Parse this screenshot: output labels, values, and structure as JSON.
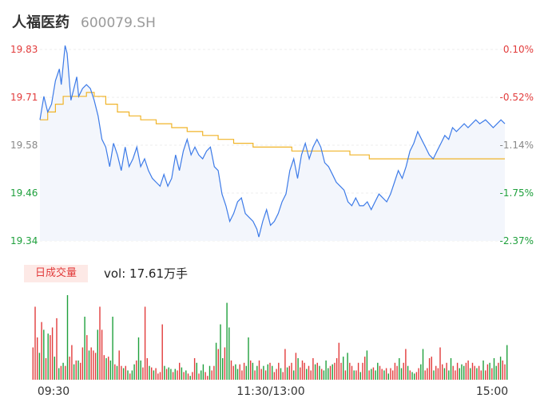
{
  "header": {
    "name": "人福医药",
    "code": "600079.SH"
  },
  "volume_badge": "日成交量",
  "volume_text": "vol: 17.61万手",
  "colors": {
    "price_line": "#3d7be8",
    "avg_line": "#f0b429",
    "up": "#e23b3b",
    "down": "#1ea03c",
    "neutral_label": "#888888",
    "area_fill": "#f3f6fc"
  },
  "chart_data": {
    "type": "line",
    "title": "",
    "xlabel": "",
    "ylabel": "",
    "ylim": [
      19.34,
      19.83
    ],
    "y_ticks": [
      {
        "price": "19.83",
        "pct": "0.10%",
        "trend": "up"
      },
      {
        "price": "19.71",
        "pct": "-0.52%",
        "trend": "up"
      },
      {
        "price": "19.58",
        "pct": "-1.14%",
        "trend": "flat"
      },
      {
        "price": "19.46",
        "pct": "-1.75%",
        "trend": "down"
      },
      {
        "price": "19.34",
        "pct": "-2.37%",
        "trend": "down"
      }
    ],
    "x_ticks": [
      "09:30",
      "11:30/13:00",
      "15:00"
    ],
    "price_series": [
      [
        0,
        19.65
      ],
      [
        2,
        19.71
      ],
      [
        4,
        19.67
      ],
      [
        6,
        19.69
      ],
      [
        8,
        19.75
      ],
      [
        10,
        19.78
      ],
      [
        11,
        19.74
      ],
      [
        13,
        19.84
      ],
      [
        14,
        19.82
      ],
      [
        16,
        19.7
      ],
      [
        18,
        19.74
      ],
      [
        19,
        19.76
      ],
      [
        20,
        19.71
      ],
      [
        22,
        19.73
      ],
      [
        24,
        19.74
      ],
      [
        26,
        19.73
      ],
      [
        28,
        19.7
      ],
      [
        30,
        19.66
      ],
      [
        32,
        19.6
      ],
      [
        34,
        19.58
      ],
      [
        36,
        19.53
      ],
      [
        38,
        19.59
      ],
      [
        40,
        19.56
      ],
      [
        42,
        19.52
      ],
      [
        44,
        19.58
      ],
      [
        46,
        19.53
      ],
      [
        48,
        19.55
      ],
      [
        50,
        19.58
      ],
      [
        52,
        19.53
      ],
      [
        54,
        19.55
      ],
      [
        56,
        19.52
      ],
      [
        58,
        19.5
      ],
      [
        60,
        19.49
      ],
      [
        62,
        19.48
      ],
      [
        64,
        19.51
      ],
      [
        66,
        19.48
      ],
      [
        68,
        19.5
      ],
      [
        70,
        19.56
      ],
      [
        72,
        19.52
      ],
      [
        74,
        19.57
      ],
      [
        76,
        19.6
      ],
      [
        78,
        19.56
      ],
      [
        80,
        19.58
      ],
      [
        82,
        19.56
      ],
      [
        84,
        19.55
      ],
      [
        86,
        19.57
      ],
      [
        88,
        19.58
      ],
      [
        90,
        19.53
      ],
      [
        92,
        19.52
      ],
      [
        94,
        19.46
      ],
      [
        96,
        19.43
      ],
      [
        98,
        19.39
      ],
      [
        100,
        19.41
      ],
      [
        102,
        19.44
      ],
      [
        104,
        19.45
      ],
      [
        106,
        19.41
      ],
      [
        108,
        19.4
      ],
      [
        110,
        19.39
      ],
      [
        112,
        19.37
      ],
      [
        113,
        19.35
      ],
      [
        115,
        19.39
      ],
      [
        117,
        19.42
      ],
      [
        119,
        19.38
      ],
      [
        121,
        19.39
      ],
      [
        123,
        19.41
      ],
      [
        125,
        19.44
      ],
      [
        127,
        19.46
      ],
      [
        129,
        19.52
      ],
      [
        131,
        19.55
      ],
      [
        133,
        19.5
      ],
      [
        135,
        19.56
      ],
      [
        137,
        19.59
      ],
      [
        139,
        19.55
      ],
      [
        141,
        19.58
      ],
      [
        143,
        19.6
      ],
      [
        145,
        19.58
      ],
      [
        147,
        19.54
      ],
      [
        149,
        19.53
      ],
      [
        151,
        19.51
      ],
      [
        153,
        19.49
      ],
      [
        155,
        19.48
      ],
      [
        157,
        19.47
      ],
      [
        159,
        19.44
      ],
      [
        161,
        19.43
      ],
      [
        163,
        19.45
      ],
      [
        165,
        19.43
      ],
      [
        167,
        19.43
      ],
      [
        169,
        19.44
      ],
      [
        171,
        19.42
      ],
      [
        173,
        19.44
      ],
      [
        175,
        19.46
      ],
      [
        177,
        19.45
      ],
      [
        179,
        19.44
      ],
      [
        181,
        19.46
      ],
      [
        183,
        19.49
      ],
      [
        185,
        19.52
      ],
      [
        187,
        19.5
      ],
      [
        189,
        19.53
      ],
      [
        191,
        19.57
      ],
      [
        193,
        19.59
      ],
      [
        195,
        19.62
      ],
      [
        197,
        19.6
      ],
      [
        199,
        19.58
      ],
      [
        201,
        19.56
      ],
      [
        203,
        19.55
      ],
      [
        205,
        19.57
      ],
      [
        207,
        19.59
      ],
      [
        209,
        19.61
      ],
      [
        211,
        19.6
      ],
      [
        213,
        19.63
      ],
      [
        215,
        19.62
      ],
      [
        217,
        19.63
      ],
      [
        219,
        19.64
      ],
      [
        221,
        19.63
      ],
      [
        223,
        19.64
      ],
      [
        225,
        19.65
      ],
      [
        227,
        19.64
      ],
      [
        230,
        19.65
      ],
      [
        232,
        19.64
      ],
      [
        234,
        19.63
      ],
      [
        236,
        19.64
      ],
      [
        238,
        19.65
      ],
      [
        240,
        19.64
      ]
    ],
    "avg_series": [
      [
        0,
        19.65
      ],
      [
        4,
        19.67
      ],
      [
        8,
        19.69
      ],
      [
        12,
        19.71
      ],
      [
        20,
        19.71
      ],
      [
        24,
        19.72
      ],
      [
        28,
        19.71
      ],
      [
        34,
        19.69
      ],
      [
        40,
        19.67
      ],
      [
        46,
        19.66
      ],
      [
        52,
        19.65
      ],
      [
        60,
        19.64
      ],
      [
        68,
        19.63
      ],
      [
        76,
        19.62
      ],
      [
        84,
        19.61
      ],
      [
        92,
        19.6
      ],
      [
        100,
        19.59
      ],
      [
        110,
        19.58
      ],
      [
        120,
        19.58
      ],
      [
        130,
        19.57
      ],
      [
        140,
        19.57
      ],
      [
        150,
        19.57
      ],
      [
        160,
        19.56
      ],
      [
        170,
        19.55
      ],
      [
        180,
        19.55
      ],
      [
        190,
        19.55
      ],
      [
        200,
        19.55
      ],
      [
        210,
        19.55
      ],
      [
        220,
        19.55
      ],
      [
        230,
        19.55
      ],
      [
        240,
        19.55
      ]
    ],
    "volume": [
      {
        "v": 42,
        "d": "up"
      },
      {
        "v": 95,
        "d": "up"
      },
      {
        "v": 55,
        "d": "up"
      },
      {
        "v": 35,
        "d": "down"
      },
      {
        "v": 75,
        "d": "up"
      },
      {
        "v": 65,
        "d": "down"
      },
      {
        "v": 28,
        "d": "up"
      },
      {
        "v": 60,
        "d": "down"
      },
      {
        "v": 58,
        "d": "up"
      },
      {
        "v": 68,
        "d": "up"
      },
      {
        "v": 30,
        "d": "down"
      },
      {
        "v": 80,
        "d": "up"
      },
      {
        "v": 15,
        "d": "down"
      },
      {
        "v": 18,
        "d": "up"
      },
      {
        "v": 22,
        "d": "down"
      },
      {
        "v": 18,
        "d": "up"
      },
      {
        "v": 110,
        "d": "down"
      },
      {
        "v": 30,
        "d": "up"
      },
      {
        "v": 45,
        "d": "up"
      },
      {
        "v": 20,
        "d": "down"
      },
      {
        "v": 25,
        "d": "up"
      },
      {
        "v": 25,
        "d": "down"
      },
      {
        "v": 22,
        "d": "up"
      },
      {
        "v": 42,
        "d": "up"
      },
      {
        "v": 82,
        "d": "down"
      },
      {
        "v": 58,
        "d": "up"
      },
      {
        "v": 38,
        "d": "down"
      },
      {
        "v": 42,
        "d": "up"
      },
      {
        "v": 38,
        "d": "up"
      },
      {
        "v": 35,
        "d": "up"
      },
      {
        "v": 65,
        "d": "down"
      },
      {
        "v": 95,
        "d": "up"
      },
      {
        "v": 65,
        "d": "up"
      },
      {
        "v": 32,
        "d": "up"
      },
      {
        "v": 28,
        "d": "down"
      },
      {
        "v": 30,
        "d": "up"
      },
      {
        "v": 25,
        "d": "down"
      },
      {
        "v": 82,
        "d": "down"
      },
      {
        "v": 20,
        "d": "up"
      },
      {
        "v": 18,
        "d": "down"
      },
      {
        "v": 38,
        "d": "up"
      },
      {
        "v": 18,
        "d": "up"
      },
      {
        "v": 15,
        "d": "down"
      },
      {
        "v": 18,
        "d": "up"
      },
      {
        "v": 12,
        "d": "down"
      },
      {
        "v": 8,
        "d": "up"
      },
      {
        "v": 12,
        "d": "down"
      },
      {
        "v": 20,
        "d": "down"
      },
      {
        "v": 25,
        "d": "up"
      },
      {
        "v": 55,
        "d": "down"
      },
      {
        "v": 25,
        "d": "down"
      },
      {
        "v": 16,
        "d": "up"
      },
      {
        "v": 95,
        "d": "up"
      },
      {
        "v": 28,
        "d": "up"
      },
      {
        "v": 18,
        "d": "down"
      },
      {
        "v": 16,
        "d": "up"
      },
      {
        "v": 12,
        "d": "down"
      },
      {
        "v": 15,
        "d": "up"
      },
      {
        "v": 8,
        "d": "up"
      },
      {
        "v": 10,
        "d": "up"
      },
      {
        "v": 72,
        "d": "up"
      },
      {
        "v": 18,
        "d": "down"
      },
      {
        "v": 14,
        "d": "up"
      },
      {
        "v": 16,
        "d": "down"
      },
      {
        "v": 14,
        "d": "down"
      },
      {
        "v": 10,
        "d": "up"
      },
      {
        "v": 14,
        "d": "down"
      },
      {
        "v": 12,
        "d": "up"
      },
      {
        "v": 22,
        "d": "up"
      },
      {
        "v": 16,
        "d": "down"
      },
      {
        "v": 10,
        "d": "up"
      },
      {
        "v": 12,
        "d": "down"
      },
      {
        "v": 8,
        "d": "up"
      },
      {
        "v": 5,
        "d": "down"
      },
      {
        "v": 10,
        "d": "up"
      },
      {
        "v": 28,
        "d": "up"
      },
      {
        "v": 22,
        "d": "down"
      },
      {
        "v": 8,
        "d": "up"
      },
      {
        "v": 12,
        "d": "down"
      },
      {
        "v": 20,
        "d": "down"
      },
      {
        "v": 10,
        "d": "up"
      },
      {
        "v": 5,
        "d": "up"
      },
      {
        "v": 18,
        "d": "down"
      },
      {
        "v": 12,
        "d": "up"
      },
      {
        "v": 18,
        "d": "up"
      },
      {
        "v": 48,
        "d": "down"
      },
      {
        "v": 40,
        "d": "up"
      },
      {
        "v": 72,
        "d": "down"
      },
      {
        "v": 28,
        "d": "down"
      },
      {
        "v": 42,
        "d": "up"
      },
      {
        "v": 100,
        "d": "down"
      },
      {
        "v": 68,
        "d": "down"
      },
      {
        "v": 25,
        "d": "up"
      },
      {
        "v": 18,
        "d": "up"
      },
      {
        "v": 20,
        "d": "down"
      },
      {
        "v": 14,
        "d": "down"
      },
      {
        "v": 20,
        "d": "up"
      },
      {
        "v": 12,
        "d": "up"
      },
      {
        "v": 22,
        "d": "up"
      },
      {
        "v": 18,
        "d": "down"
      },
      {
        "v": 55,
        "d": "down"
      },
      {
        "v": 25,
        "d": "up"
      },
      {
        "v": 22,
        "d": "down"
      },
      {
        "v": 12,
        "d": "up"
      },
      {
        "v": 18,
        "d": "down"
      },
      {
        "v": 25,
        "d": "up"
      },
      {
        "v": 14,
        "d": "up"
      },
      {
        "v": 18,
        "d": "down"
      },
      {
        "v": 12,
        "d": "up"
      },
      {
        "v": 20,
        "d": "down"
      },
      {
        "v": 22,
        "d": "up"
      },
      {
        "v": 18,
        "d": "down"
      },
      {
        "v": 10,
        "d": "up"
      },
      {
        "v": 14,
        "d": "up"
      },
      {
        "v": 22,
        "d": "up"
      },
      {
        "v": 15,
        "d": "down"
      },
      {
        "v": 10,
        "d": "up"
      },
      {
        "v": 40,
        "d": "up"
      },
      {
        "v": 16,
        "d": "down"
      },
      {
        "v": 18,
        "d": "up"
      },
      {
        "v": 22,
        "d": "up"
      },
      {
        "v": 12,
        "d": "down"
      },
      {
        "v": 35,
        "d": "up"
      },
      {
        "v": 28,
        "d": "down"
      },
      {
        "v": 16,
        "d": "up"
      },
      {
        "v": 25,
        "d": "up"
      },
      {
        "v": 22,
        "d": "up"
      },
      {
        "v": 14,
        "d": "down"
      },
      {
        "v": 18,
        "d": "up"
      },
      {
        "v": 12,
        "d": "up"
      },
      {
        "v": 28,
        "d": "up"
      },
      {
        "v": 20,
        "d": "down"
      },
      {
        "v": 22,
        "d": "up"
      },
      {
        "v": 18,
        "d": "down"
      },
      {
        "v": 14,
        "d": "up"
      },
      {
        "v": 12,
        "d": "down"
      },
      {
        "v": 25,
        "d": "down"
      },
      {
        "v": 15,
        "d": "down"
      },
      {
        "v": 18,
        "d": "up"
      },
      {
        "v": 20,
        "d": "down"
      },
      {
        "v": 22,
        "d": "up"
      },
      {
        "v": 28,
        "d": "up"
      },
      {
        "v": 48,
        "d": "up"
      },
      {
        "v": 22,
        "d": "up"
      },
      {
        "v": 30,
        "d": "down"
      },
      {
        "v": 12,
        "d": "up"
      },
      {
        "v": 35,
        "d": "down"
      },
      {
        "v": 22,
        "d": "up"
      },
      {
        "v": 18,
        "d": "up"
      },
      {
        "v": 12,
        "d": "down"
      },
      {
        "v": 12,
        "d": "up"
      },
      {
        "v": 22,
        "d": "up"
      },
      {
        "v": 10,
        "d": "down"
      },
      {
        "v": 22,
        "d": "up"
      },
      {
        "v": 30,
        "d": "up"
      },
      {
        "v": 38,
        "d": "down"
      },
      {
        "v": 12,
        "d": "up"
      },
      {
        "v": 14,
        "d": "down"
      },
      {
        "v": 16,
        "d": "up"
      },
      {
        "v": 12,
        "d": "down"
      },
      {
        "v": 22,
        "d": "down"
      },
      {
        "v": 18,
        "d": "up"
      },
      {
        "v": 14,
        "d": "up"
      },
      {
        "v": 12,
        "d": "down"
      },
      {
        "v": 15,
        "d": "up"
      },
      {
        "v": 8,
        "d": "down"
      },
      {
        "v": 15,
        "d": "up"
      },
      {
        "v": 12,
        "d": "up"
      },
      {
        "v": 22,
        "d": "up"
      },
      {
        "v": 18,
        "d": "up"
      },
      {
        "v": 28,
        "d": "down"
      },
      {
        "v": 15,
        "d": "down"
      },
      {
        "v": 22,
        "d": "up"
      },
      {
        "v": 40,
        "d": "up"
      },
      {
        "v": 18,
        "d": "down"
      },
      {
        "v": 12,
        "d": "up"
      },
      {
        "v": 10,
        "d": "down"
      },
      {
        "v": 8,
        "d": "down"
      },
      {
        "v": 10,
        "d": "up"
      },
      {
        "v": 15,
        "d": "up"
      },
      {
        "v": 20,
        "d": "down"
      },
      {
        "v": 40,
        "d": "down"
      },
      {
        "v": 12,
        "d": "up"
      },
      {
        "v": 15,
        "d": "up"
      },
      {
        "v": 28,
        "d": "up"
      },
      {
        "v": 30,
        "d": "up"
      },
      {
        "v": 12,
        "d": "down"
      },
      {
        "v": 18,
        "d": "up"
      },
      {
        "v": 15,
        "d": "up"
      },
      {
        "v": 42,
        "d": "up"
      },
      {
        "v": 20,
        "d": "up"
      },
      {
        "v": 15,
        "d": "down"
      },
      {
        "v": 22,
        "d": "up"
      },
      {
        "v": 12,
        "d": "down"
      },
      {
        "v": 28,
        "d": "down"
      },
      {
        "v": 18,
        "d": "up"
      },
      {
        "v": 12,
        "d": "up"
      },
      {
        "v": 22,
        "d": "up"
      },
      {
        "v": 15,
        "d": "down"
      },
      {
        "v": 20,
        "d": "down"
      },
      {
        "v": 18,
        "d": "down"
      },
      {
        "v": 22,
        "d": "up"
      },
      {
        "v": 25,
        "d": "up"
      },
      {
        "v": 15,
        "d": "down"
      },
      {
        "v": 22,
        "d": "up"
      },
      {
        "v": 18,
        "d": "up"
      },
      {
        "v": 15,
        "d": "down"
      },
      {
        "v": 18,
        "d": "up"
      },
      {
        "v": 12,
        "d": "up"
      },
      {
        "v": 25,
        "d": "down"
      },
      {
        "v": 12,
        "d": "up"
      },
      {
        "v": 20,
        "d": "up"
      },
      {
        "v": 22,
        "d": "down"
      },
      {
        "v": 15,
        "d": "up"
      },
      {
        "v": 28,
        "d": "down"
      },
      {
        "v": 18,
        "d": "down"
      },
      {
        "v": 22,
        "d": "up"
      },
      {
        "v": 30,
        "d": "down"
      },
      {
        "v": 25,
        "d": "up"
      },
      {
        "v": 20,
        "d": "up"
      },
      {
        "v": 45,
        "d": "down"
      }
    ]
  }
}
